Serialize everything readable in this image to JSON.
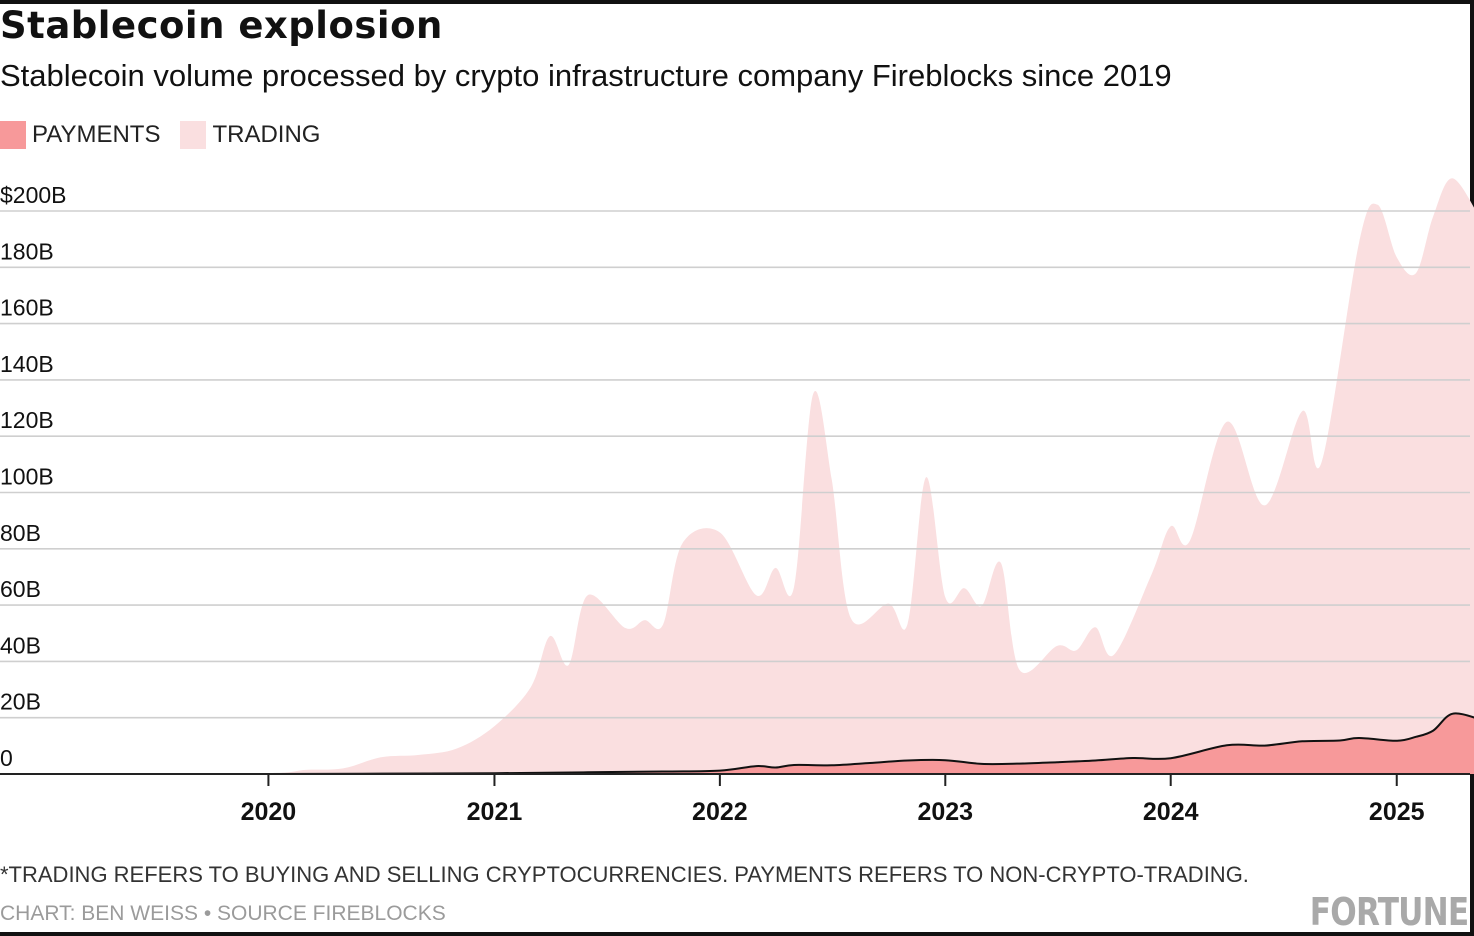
{
  "title": "Stablecoin explosion",
  "subtitle": "Stablecoin volume processed by crypto infrastructure company Fireblocks since 2019",
  "legend": {
    "payments": {
      "label": "PAYMENTS",
      "color": "#f7999a"
    },
    "trading": {
      "label": "TRADING",
      "color": "#fadfe0"
    }
  },
  "footnote": "*TRADING REFERS TO BUYING AND SELLING CRYPTOCURRENCIES. PAYMENTS REFERS TO NON-CRYPTO-TRADING.",
  "credit": "CHART: BEN WEISS • SOURCE FIREBLOCKS",
  "logo_text": "FORTUNE",
  "chart_data": {
    "type": "area",
    "stacked": true,
    "title": "Stablecoin explosion",
    "subtitle": "Stablecoin volume processed by crypto infrastructure company Fireblocks since 2019",
    "xlabel": "",
    "ylabel": "",
    "unit": "B",
    "xlim": [
      "2019-01-01",
      "2025-06-01"
    ],
    "ylim": [
      0,
      200
    ],
    "y_ticks": [
      0,
      20,
      40,
      60,
      80,
      100,
      120,
      140,
      160,
      180,
      200
    ],
    "y_tick_labels": [
      "0",
      "20B",
      "40B",
      "60B",
      "80B",
      "100B",
      "120B",
      "140B",
      "160B",
      "180B",
      "$200B"
    ],
    "x_ticks": [
      "2020-01-01",
      "2021-01-01",
      "2022-01-01",
      "2023-01-01",
      "2024-01-01",
      "2025-01-01"
    ],
    "x_tick_labels": [
      "2020",
      "2021",
      "2022",
      "2023",
      "2024",
      "2025"
    ],
    "grid": true,
    "legend_position": "top-left",
    "series": [
      {
        "name": "PAYMENTS",
        "color": "#f7999a",
        "points": [
          [
            "2019-01-01",
            0
          ],
          [
            "2019-06-01",
            0
          ],
          [
            "2020-01-01",
            0
          ],
          [
            "2020-06-01",
            0.1
          ],
          [
            "2021-01-01",
            0.3
          ],
          [
            "2021-06-01",
            0.6
          ],
          [
            "2021-10-01",
            0.9
          ],
          [
            "2022-01-01",
            1.2
          ],
          [
            "2022-03-01",
            2.8
          ],
          [
            "2022-04-01",
            2.3
          ],
          [
            "2022-05-01",
            3.2
          ],
          [
            "2022-07-01",
            3.1
          ],
          [
            "2022-09-01",
            3.9
          ],
          [
            "2022-11-01",
            4.8
          ],
          [
            "2023-01-01",
            4.9
          ],
          [
            "2023-03-01",
            3.6
          ],
          [
            "2023-05-01",
            3.7
          ],
          [
            "2023-07-01",
            4.2
          ],
          [
            "2023-09-01",
            4.8
          ],
          [
            "2023-11-01",
            5.7
          ],
          [
            "2024-01-01",
            5.6
          ],
          [
            "2024-04-01",
            10.2
          ],
          [
            "2024-06-01",
            10.1
          ],
          [
            "2024-08-01",
            11.6
          ],
          [
            "2024-10-01",
            11.9
          ],
          [
            "2024-11-01",
            12.8
          ],
          [
            "2025-01-01",
            11.8
          ],
          [
            "2025-02-01",
            13.2
          ],
          [
            "2025-03-01",
            15.4
          ],
          [
            "2025-04-01",
            21.4
          ],
          [
            "2025-05-15",
            19.5
          ]
        ]
      },
      {
        "name": "TRADING",
        "color": "#fadfe0",
        "points": [
          [
            "2019-01-01",
            0
          ],
          [
            "2019-06-01",
            0
          ],
          [
            "2020-01-01",
            0.2
          ],
          [
            "2020-03-01",
            1.4
          ],
          [
            "2020-05-01",
            1.9
          ],
          [
            "2020-07-01",
            5.8
          ],
          [
            "2020-09-01",
            6.6
          ],
          [
            "2020-11-01",
            8.8
          ],
          [
            "2021-01-01",
            16.7
          ],
          [
            "2021-03-01",
            30.5
          ],
          [
            "2021-04-01",
            48.5
          ],
          [
            "2021-05-01",
            38.2
          ],
          [
            "2021-06-01",
            62.9
          ],
          [
            "2021-08-01",
            51.1
          ],
          [
            "2021-09-01",
            53.8
          ],
          [
            "2021-10-01",
            52.2
          ],
          [
            "2021-11-01",
            80.8
          ],
          [
            "2022-01-01",
            84.6
          ],
          [
            "2022-03-01",
            60.7
          ],
          [
            "2022-04-01",
            70.9
          ],
          [
            "2022-05-01",
            63.2
          ],
          [
            "2022-06-01",
            131.8
          ],
          [
            "2022-07-01",
            101.6
          ],
          [
            "2022-08-01",
            51.9
          ],
          [
            "2022-10-01",
            56.2
          ],
          [
            "2022-11-01",
            48.6
          ],
          [
            "2022-12-01",
            100.6
          ],
          [
            "2023-01-01",
            57.9
          ],
          [
            "2023-02-01",
            61.8
          ],
          [
            "2023-03-01",
            56.1
          ],
          [
            "2023-04-01",
            71.3
          ],
          [
            "2023-05-01",
            33.3
          ],
          [
            "2023-07-01",
            41.3
          ],
          [
            "2023-08-01",
            39.4
          ],
          [
            "2023-09-01",
            47.3
          ],
          [
            "2023-10-01",
            37.1
          ],
          [
            "2023-12-01",
            65.3
          ],
          [
            "2024-01-01",
            82.4
          ],
          [
            "2024-02-01",
            75.7
          ],
          [
            "2024-04-01",
            114.9
          ],
          [
            "2024-06-01",
            85.3
          ],
          [
            "2024-08-01",
            117.3
          ],
          [
            "2024-09-01",
            98.8
          ],
          [
            "2024-11-01",
            176.0
          ],
          [
            "2024-12-01",
            189.9
          ],
          [
            "2025-01-01",
            171.8
          ],
          [
            "2025-02-01",
            164.7
          ],
          [
            "2025-03-01",
            182.7
          ],
          [
            "2025-04-01",
            190.2
          ],
          [
            "2025-05-15",
            178.3
          ]
        ]
      }
    ]
  }
}
